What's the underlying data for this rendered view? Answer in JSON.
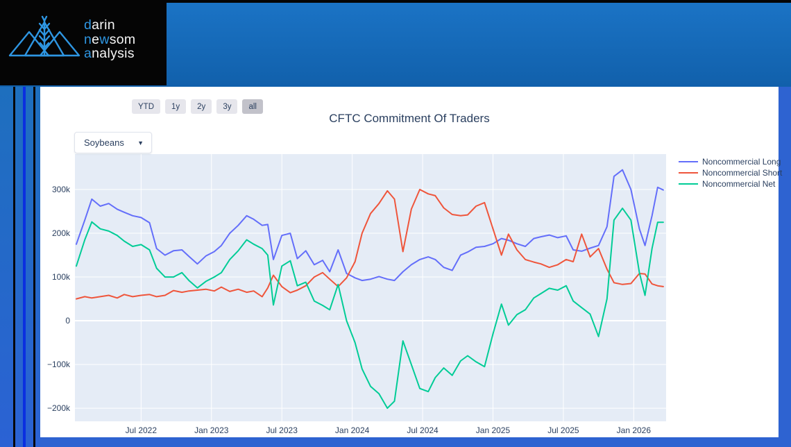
{
  "logo": {
    "accent_color": "#2e96e2",
    "text_color": "#f5f5f5",
    "lines": [
      [
        {
          "t": "d",
          "accent": true
        },
        {
          "t": "arin",
          "accent": false
        }
      ],
      [
        {
          "t": "n",
          "accent": true
        },
        {
          "t": "e",
          "accent": false
        },
        {
          "t": "w",
          "accent": true
        },
        {
          "t": "som",
          "accent": false
        }
      ],
      [
        {
          "t": "a",
          "accent": true
        },
        {
          "t": "nalysis",
          "accent": false
        }
      ]
    ]
  },
  "range_selector": {
    "buttons": [
      {
        "label": "YTD",
        "active": false
      },
      {
        "label": "1y",
        "active": false
      },
      {
        "label": "2y",
        "active": false
      },
      {
        "label": "3y",
        "active": false
      },
      {
        "label": "all",
        "active": true
      }
    ]
  },
  "commodity_dropdown": {
    "value": "Soybeans",
    "arrow_icon": "▼"
  },
  "chart_data": {
    "type": "line",
    "title": "CFTC Commitment Of Traders",
    "plot_bg": "#e5ecf6",
    "grid_color": "#ffffff",
    "axis_text_color": "#2a3f5f",
    "legend_position": "right",
    "grid": true,
    "x_axis": {
      "range": [
        2022.03,
        2026.23
      ],
      "ticks": [
        {
          "year": 2022.5,
          "label": "Jul 2022"
        },
        {
          "year": 2023.0,
          "label": "Jan 2023"
        },
        {
          "year": 2023.5,
          "label": "Jul 2023"
        },
        {
          "year": 2024.0,
          "label": "Jan 2024"
        },
        {
          "year": 2024.5,
          "label": "Jul 2024"
        },
        {
          "year": 2025.0,
          "label": "Jan 2025"
        },
        {
          "year": 2025.5,
          "label": "Jul 2025"
        },
        {
          "year": 2026.0,
          "label": "Jan 2026"
        }
      ]
    },
    "y_axis": {
      "range": [
        -230,
        381
      ],
      "ticks": [
        {
          "value": 300,
          "label": "300k"
        },
        {
          "value": 200,
          "label": "200k"
        },
        {
          "value": 100,
          "label": "100k"
        },
        {
          "value": 0,
          "label": "0"
        },
        {
          "value": -100,
          "label": "−100k"
        },
        {
          "value": -200,
          "label": "−200k"
        }
      ]
    },
    "x": [
      2022.04,
      2022.1,
      2022.15,
      2022.21,
      2022.27,
      2022.33,
      2022.38,
      2022.44,
      2022.5,
      2022.56,
      2022.61,
      2022.67,
      2022.73,
      2022.79,
      2022.84,
      2022.9,
      2022.96,
      2023.02,
      2023.07,
      2023.13,
      2023.19,
      2023.25,
      2023.3,
      2023.36,
      2023.4,
      2023.44,
      2023.5,
      2023.56,
      2023.61,
      2023.67,
      2023.73,
      2023.79,
      2023.84,
      2023.9,
      2023.96,
      2024.02,
      2024.07,
      2024.13,
      2024.19,
      2024.25,
      2024.3,
      2024.36,
      2024.42,
      2024.48,
      2024.54,
      2024.59,
      2024.65,
      2024.71,
      2024.77,
      2024.82,
      2024.88,
      2024.94,
      2025.0,
      2025.06,
      2025.11,
      2025.17,
      2025.23,
      2025.29,
      2025.34,
      2025.4,
      2025.46,
      2025.52,
      2025.57,
      2025.63,
      2025.69,
      2025.75,
      2025.81,
      2025.86,
      2025.92,
      2025.98,
      2026.04,
      2026.08,
      2026.13,
      2026.17,
      2026.21
    ],
    "series": [
      {
        "name": "Noncommercial Long",
        "color": "#636efa",
        "values": [
          175,
          230,
          278,
          262,
          268,
          255,
          248,
          240,
          236,
          224,
          165,
          150,
          160,
          162,
          147,
          130,
          148,
          158,
          172,
          200,
          218,
          240,
          232,
          218,
          220,
          140,
          195,
          200,
          142,
          160,
          128,
          138,
          112,
          162,
          108,
          98,
          92,
          95,
          101,
          95,
          92,
          112,
          128,
          140,
          146,
          140,
          122,
          115,
          150,
          157,
          168,
          170,
          176,
          188,
          184,
          176,
          170,
          188,
          192,
          196,
          190,
          194,
          162,
          159,
          166,
          172,
          215,
          330,
          345,
          300,
          210,
          172,
          240,
          305,
          299
        ]
      },
      {
        "name": "Noncommercial Short",
        "color": "#EF553B",
        "values": [
          50,
          55,
          52,
          55,
          58,
          52,
          60,
          55,
          58,
          60,
          55,
          58,
          69,
          65,
          68,
          70,
          72,
          68,
          77,
          67,
          72,
          65,
          68,
          55,
          75,
          104,
          78,
          64,
          70,
          80,
          100,
          110,
          95,
          78,
          98,
          135,
          200,
          245,
          268,
          297,
          278,
          158,
          255,
          300,
          290,
          286,
          258,
          243,
          240,
          242,
          262,
          270,
          210,
          150,
          198,
          162,
          140,
          134,
          130,
          122,
          128,
          140,
          135,
          198,
          146,
          165,
          118,
          87,
          83,
          85,
          108,
          107,
          84,
          80,
          78
        ]
      },
      {
        "name": "Noncommercial Net",
        "color": "#00cc96",
        "values": [
          125,
          185,
          226,
          210,
          205,
          195,
          182,
          170,
          174,
          162,
          120,
          100,
          100,
          110,
          92,
          75,
          90,
          100,
          110,
          140,
          160,
          185,
          175,
          165,
          150,
          36,
          125,
          137,
          80,
          88,
          45,
          35,
          25,
          83,
          0,
          -50,
          -110,
          -150,
          -167,
          -200,
          -184,
          -46,
          -100,
          -155,
          -162,
          -130,
          -108,
          -125,
          -92,
          -80,
          -94,
          -105,
          -30,
          38,
          -10,
          14,
          25,
          52,
          62,
          74,
          70,
          80,
          45,
          30,
          15,
          -36,
          50,
          230,
          257,
          230,
          110,
          58,
          165,
          225,
          225
        ]
      }
    ]
  }
}
